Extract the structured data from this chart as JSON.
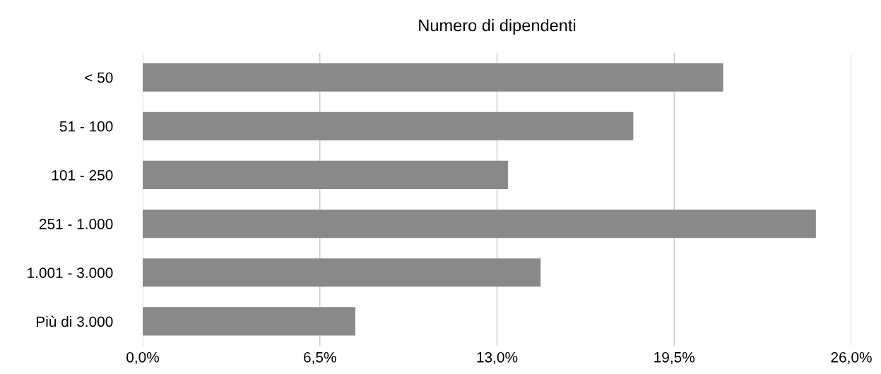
{
  "chart_data": {
    "type": "bar",
    "orientation": "horizontal",
    "title": "Numero di dipendenti",
    "categories": [
      "< 50",
      "51 - 100",
      "101 - 250",
      "251 - 1.000",
      "1.001 - 3.000",
      "Più di 3.000"
    ],
    "values": [
      21.3,
      18.0,
      13.4,
      24.7,
      14.6,
      7.8
    ],
    "color": "#898989",
    "xlim": [
      0,
      26
    ],
    "xticks": [
      {
        "value": 0,
        "label": "0,0%"
      },
      {
        "value": 6.5,
        "label": "6,5%"
      },
      {
        "value": 13,
        "label": "13,0%"
      },
      {
        "value": 19.5,
        "label": "19,5%"
      },
      {
        "value": 26,
        "label": "26,0%"
      }
    ],
    "grid": "x"
  }
}
